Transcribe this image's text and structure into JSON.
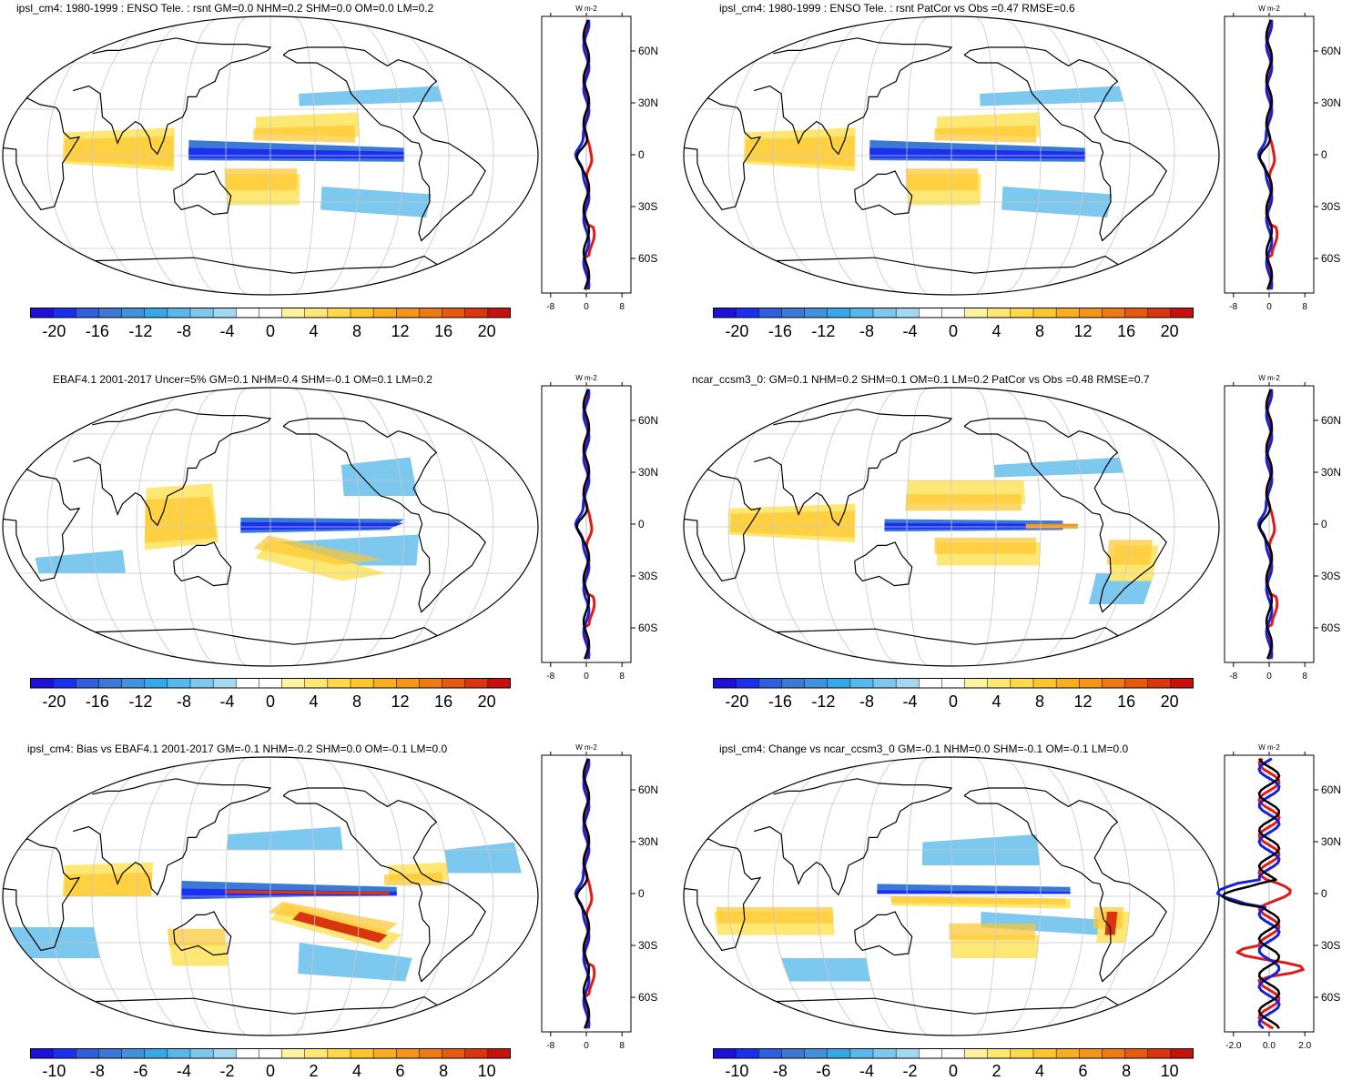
{
  "colors": {
    "neg": [
      "#1e0fd9",
      "#1b2ff0",
      "#2f5fde",
      "#3a7ad6",
      "#3f93dd",
      "#35a8ea",
      "#56b8ec",
      "#7cc8ee",
      "#a3d8f1"
    ],
    "neutral": "#ffffff",
    "pos": [
      "#fff3a0",
      "#ffe774",
      "#ffd84c",
      "#fdc62d",
      "#f9ad21",
      "#f59417",
      "#ef7a12",
      "#e6590f",
      "#d9350e",
      "#c8100e"
    ],
    "obs_line": "#e11919",
    "model_line": "#1521d6",
    "ref_line": "#000000"
  },
  "profile_unit": "W m-2",
  "panels": [
    {
      "id": "p1",
      "title": "ipsl_cm4: 1980-1999 : ENSO Tele. : rsnt GM=0.0 NHM=0.2 SHM=0.0 OM=0.0 LM=0.2",
      "colorbar_ticks": [
        "-20",
        "-16",
        "-12",
        "-8",
        "-4",
        "0",
        "4",
        "8",
        "12",
        "16",
        "20"
      ],
      "profile_ticks": [
        "-8",
        "0",
        "8"
      ],
      "lat_ticks": [
        "60N",
        "30N",
        "0",
        "30S",
        "60S"
      ]
    },
    {
      "id": "p2",
      "title": "ipsl_cm4: 1980-1999 : ENSO Tele. : rsnt PatCor vs Obs =0.47 RMSE=0.6",
      "colorbar_ticks": [
        "-20",
        "-16",
        "-12",
        "-8",
        "-4",
        "0",
        "4",
        "8",
        "12",
        "16",
        "20"
      ],
      "profile_ticks": [
        "-8",
        "0",
        "8"
      ],
      "lat_ticks": [
        "60N",
        "30N",
        "0",
        "30S",
        "60S"
      ]
    },
    {
      "id": "p3",
      "title": "EBAF4.1 2001-2017 Uncer=5% GM=0.1 NHM=0.4 SHM=-0.1 OM=0.1 LM=0.2",
      "colorbar_ticks": [
        "-20",
        "-16",
        "-12",
        "-8",
        "-4",
        "0",
        "4",
        "8",
        "12",
        "16",
        "20"
      ],
      "profile_ticks": [
        "-8",
        "0",
        "8"
      ],
      "lat_ticks": [
        "60N",
        "30N",
        "0",
        "30S",
        "60S"
      ]
    },
    {
      "id": "p4",
      "title": "ncar_ccsm3_0: GM=0.1 NHM=0.2 SHM=0.1 OM=0.1 LM=0.2 PatCor vs Obs =0.48 RMSE=0.7",
      "colorbar_ticks": [
        "-20",
        "-16",
        "-12",
        "-8",
        "-4",
        "0",
        "4",
        "8",
        "12",
        "16",
        "20"
      ],
      "profile_ticks": [
        "-8",
        "0",
        "8"
      ],
      "lat_ticks": [
        "60N",
        "30N",
        "0",
        "30S",
        "60S"
      ]
    },
    {
      "id": "p5",
      "title": "ipsl_cm4: Bias vs EBAF4.1 2001-2017 GM=-0.1 NHM=-0.2 SHM=0.0 OM=-0.1 LM=0.0",
      "colorbar_ticks": [
        "-10",
        "-8",
        "-6",
        "-4",
        "-2",
        "0",
        "2",
        "4",
        "6",
        "8",
        "10"
      ],
      "profile_ticks": [
        "-8",
        "0",
        "8"
      ],
      "lat_ticks": [
        "60N",
        "30N",
        "0",
        "30S",
        "60S"
      ]
    },
    {
      "id": "p6",
      "title": "ipsl_cm4: Change vs ncar_ccsm3_0 GM=-0.1 NHM=0.0 SHM=-0.1 OM=-0.1 LM=0.0",
      "colorbar_ticks": [
        "-10",
        "-8",
        "-6",
        "-4",
        "-2",
        "0",
        "2",
        "4",
        "6",
        "8",
        "10"
      ],
      "profile_ticks": [
        "-2.0",
        "0.0",
        "2.0"
      ],
      "lat_ticks": [
        "60N",
        "30N",
        "0",
        "30S",
        "60S"
      ]
    }
  ],
  "chart_data": [
    {
      "type": "heatmap",
      "title": "ipsl_cm4: 1980-1999 : ENSO Tele. : rsnt GM=0.0 NHM=0.2 SHM=0.0 OM=0.0 LM=0.2",
      "colorbar_range": [
        -20,
        20
      ]
    },
    {
      "type": "heatmap",
      "title": "ipsl_cm4: 1980-1999 : ENSO Tele. : rsnt PatCor vs Obs =0.47 RMSE=0.6",
      "colorbar_range": [
        -20,
        20
      ]
    },
    {
      "type": "heatmap",
      "title": "EBAF4.1 2001-2017 Uncer=5% GM=0.1 NHM=0.4 SHM=-0.1 OM=0.1 LM=0.2",
      "colorbar_range": [
        -20,
        20
      ]
    },
    {
      "type": "heatmap",
      "title": "ncar_ccsm3_0: GM=0.1 NHM=0.2 SHM=0.1 OM=0.1 LM=0.2 PatCor vs Obs =0.48 RMSE=0.7",
      "colorbar_range": [
        -20,
        20
      ]
    },
    {
      "type": "heatmap",
      "title": "ipsl_cm4: Bias vs EBAF4.1 2001-2017 GM=-0.1 NHM=-0.2 SHM=0.0 OM=-0.1 LM=0.0",
      "colorbar_range": [
        -10,
        10
      ]
    },
    {
      "type": "heatmap",
      "title": "ipsl_cm4: Change vs ncar_ccsm3_0 GM=-0.1 NHM=0.0 SHM=-0.1 OM=-0.1 LM=0.0",
      "colorbar_range": [
        -10,
        10
      ]
    }
  ]
}
